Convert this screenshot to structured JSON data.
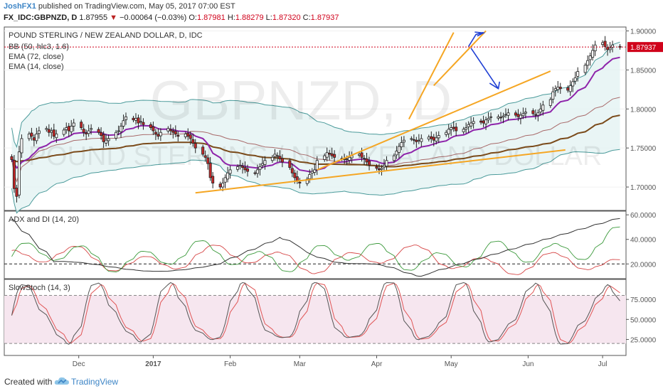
{
  "header": {
    "author": "JoshFX1",
    "published_text": "published on TradingView.com, May 05, 2017 07:00 EST",
    "symbol": "FX_IDC:GBPNZD, D",
    "last": "1.87955",
    "change_arrow": "▼",
    "change": "−0.00064 (−0.03%)",
    "open_label": "O:",
    "open": "1.87981",
    "high_label": "H:",
    "high": "1.88279",
    "low_label": "L:",
    "low": "1.87320",
    "close_label": "C:",
    "close": "1.87937"
  },
  "footer": {
    "created_with": "Created with",
    "brand": "TradingView"
  },
  "colors": {
    "up": "#ffffff",
    "down": "#c62828",
    "bb": "#4a9a9a",
    "bb_fill": "#e3f3f3",
    "ema72": "#7a4a1a",
    "ema14": "#8e24aa",
    "trendline": "#f5a623",
    "projection": "#1f3fd4",
    "price_line": "#d0021b",
    "adx": "#333333",
    "di_plus": "#3c9a3c",
    "di_minus": "#d64545",
    "stoch_k": "#555555",
    "stoch_d": "#e05555",
    "stoch_band": "#f6e6ef"
  },
  "chart_data": [
    {
      "type": "candlestick",
      "title": "POUND STERLING / NEW ZEALAND DOLLAR, D, IDC",
      "watermark_symbol": "GBPNZD, D",
      "watermark_name": "POUND STERLING / NEW ZEALAND DOLLAR",
      "indicators": [
        "BB (50, hlc3, 1.6)",
        "EMA (72, close)",
        "EMA (14, close)"
      ],
      "ylim": [
        1.67,
        1.905
      ],
      "y_ticks": [
        1.7,
        1.75,
        1.8,
        1.85,
        1.9
      ],
      "y_tick_labels": [
        "1.70000",
        "1.75000",
        "1.80000",
        "1.85000",
        "1.90000"
      ],
      "current_price": 1.87937,
      "current_price_label": "1.87937",
      "x_labels": [
        "Dec",
        "2017",
        "Feb",
        "Mar",
        "Apr",
        "May",
        "Jun",
        "Jul"
      ],
      "x_label_days": [
        27,
        57,
        88,
        116,
        147,
        177,
        208,
        238
      ],
      "closes": [
        1.735,
        1.698,
        1.688,
        1.745,
        1.762,
        1.768,
        1.765,
        1.76,
        1.768,
        1.772,
        1.775,
        1.77,
        1.772,
        1.765,
        1.768,
        1.773,
        1.776,
        1.772,
        1.778,
        1.782,
        1.776,
        1.77,
        1.768,
        1.772,
        1.775,
        1.77,
        1.766,
        1.758,
        1.76,
        1.762,
        1.77,
        1.772,
        1.778,
        1.785,
        1.79,
        1.786,
        1.788,
        1.782,
        1.784,
        1.78,
        1.776,
        1.772,
        1.768,
        1.765,
        1.77,
        1.775,
        1.772,
        1.77,
        1.768,
        1.765,
        1.768,
        1.765,
        1.762,
        1.756,
        1.75,
        1.742,
        1.738,
        1.73,
        1.712,
        1.705,
        1.7,
        1.705,
        1.712,
        1.718,
        1.722,
        1.726,
        1.728,
        1.725,
        1.722,
        1.72,
        1.718,
        1.722,
        1.726,
        1.73,
        1.734,
        1.738,
        1.742,
        1.74,
        1.736,
        1.732,
        1.725,
        1.718,
        1.712,
        1.708,
        1.705,
        1.71,
        1.716,
        1.72,
        1.722,
        1.734,
        1.74,
        1.744,
        1.742,
        1.74,
        1.738,
        1.736,
        1.735,
        1.736,
        1.738,
        1.74,
        1.742,
        1.738,
        1.736,
        1.732,
        1.728,
        1.724,
        1.722,
        1.724,
        1.728,
        1.734,
        1.74,
        1.746,
        1.752,
        1.757,
        1.76,
        1.762,
        1.76,
        1.758,
        1.76,
        1.762,
        1.764,
        1.762,
        1.76,
        1.763,
        1.766,
        1.77,
        1.774,
        1.776,
        1.775,
        1.772,
        1.774,
        1.776,
        1.78,
        1.782,
        1.784,
        1.783,
        1.782,
        1.786,
        1.788,
        1.79,
        1.79,
        1.789,
        1.791,
        1.793,
        1.795,
        1.792,
        1.79,
        1.792,
        1.794,
        1.796,
        1.794,
        1.792,
        1.795,
        1.8,
        1.805,
        1.812,
        1.822,
        1.826,
        1.828,
        1.826,
        1.824,
        1.83,
        1.835,
        1.84,
        1.848,
        1.856,
        1.862,
        1.868,
        1.875,
        1.882,
        1.885,
        1.88,
        1.876,
        1.878,
        1.882,
        1.879
      ],
      "ema72_last": 1.792,
      "adx_title": "ADX and DI (14, 20)",
      "adx_ylim": [
        8,
        63
      ],
      "adx_ticks": [
        20,
        40,
        60
      ],
      "adx_tick_labels": [
        "20.0000",
        "40.0000",
        "60.0000"
      ],
      "adx_level": 20,
      "stoch_title": "SlowStoch (14, 3)",
      "stoch_ylim": [
        5,
        100
      ],
      "stoch_ticks": [
        25,
        50,
        75
      ],
      "stoch_tick_labels": [
        "25.0000",
        "50.0000",
        "75.0000"
      ],
      "stoch_levels": [
        20,
        80
      ]
    }
  ]
}
